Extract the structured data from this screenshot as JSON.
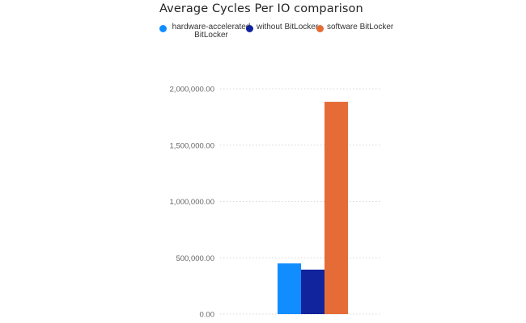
{
  "chart_data": {
    "type": "bar",
    "title": "Average Cycles Per IO comparison",
    "xlabel": "",
    "ylabel": "",
    "categories": [
      ""
    ],
    "series": [
      {
        "name": "hardware-accelerated BitLocker",
        "color": "#118DFF",
        "values": [
          450000
        ]
      },
      {
        "name": "without BitLocker",
        "color": "#12239E",
        "values": [
          395000
        ]
      },
      {
        "name": "software BitLocker",
        "color": "#E66C37",
        "values": [
          1885000
        ]
      }
    ],
    "ylim": [
      0,
      2000000
    ],
    "yticks": [
      0,
      500000,
      1000000,
      1500000,
      2000000
    ],
    "ytick_labels": [
      "0.00",
      "500,000.00",
      "1,000,000.00",
      "1,500,000.00",
      "2,000,000.00"
    ],
    "grid": true,
    "legend_position": "top"
  }
}
